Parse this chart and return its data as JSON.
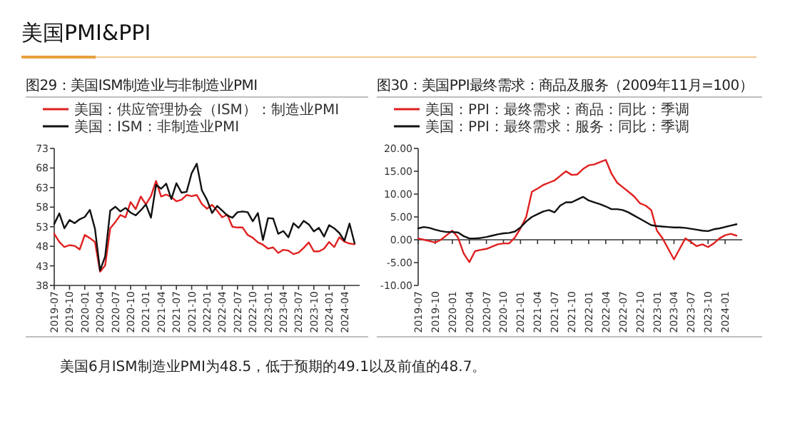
{
  "chart_data": [
    {
      "type": "line",
      "title": "图29：美国ISM制造业与非制造业PMI",
      "legend": "top",
      "annotations": [
        "美国PMI&PPI",
        "美国6月ISM制造业PMI为48.5，低于预期的49.1以及前值的48.7。"
      ],
      "x": [
        "2019-07",
        "2019-08",
        "2019-09",
        "2019-10",
        "2019-11",
        "2019-12",
        "2020-01",
        "2020-02",
        "2020-03",
        "2020-04",
        "2020-05",
        "2020-06",
        "2020-07",
        "2020-08",
        "2020-09",
        "2020-10",
        "2020-11",
        "2020-12",
        "2021-01",
        "2021-02",
        "2021-03",
        "2021-04",
        "2021-05",
        "2021-06",
        "2021-07",
        "2021-08",
        "2021-09",
        "2021-10",
        "2021-11",
        "2021-12",
        "2022-01",
        "2022-02",
        "2022-03",
        "2022-04",
        "2022-05",
        "2022-06",
        "2022-07",
        "2022-08",
        "2022-09",
        "2022-10",
        "2022-11",
        "2022-12",
        "2023-01",
        "2023-02",
        "2023-03",
        "2023-04",
        "2023-05",
        "2023-06",
        "2023-07",
        "2023-08",
        "2023-09",
        "2023-10",
        "2023-11",
        "2023-12",
        "2024-01",
        "2024-02",
        "2024-03",
        "2024-04",
        "2024-05",
        "2024-06"
      ],
      "series": [
        {
          "name": "美国：供应管理协会（ISM）：制造业PMI",
          "color": "#e02020",
          "values": [
            51.2,
            49.1,
            47.8,
            48.3,
            48.1,
            47.2,
            50.9,
            50.1,
            49.1,
            41.5,
            43.1,
            52.6,
            54.2,
            56.0,
            55.4,
            59.3,
            57.5,
            60.7,
            58.7,
            60.8,
            64.7,
            60.7,
            61.2,
            60.6,
            59.5,
            59.9,
            61.1,
            60.8,
            61.1,
            58.8,
            57.6,
            58.6,
            57.1,
            55.4,
            56.1,
            53.0,
            52.8,
            52.8,
            50.9,
            50.2,
            49.0,
            48.4,
            47.4,
            47.7,
            46.3,
            47.1,
            46.9,
            46.0,
            46.4,
            47.6,
            49.0,
            46.7,
            46.7,
            47.4,
            49.1,
            47.8,
            50.3,
            49.2,
            48.7,
            48.5
          ]
        },
        {
          "name": "美国：ISM：非制造业PMI",
          "color": "#111111",
          "values": [
            53.7,
            56.4,
            52.6,
            54.7,
            53.9,
            54.9,
            55.5,
            57.3,
            52.5,
            41.8,
            45.4,
            57.1,
            58.1,
            56.9,
            57.8,
            56.6,
            55.9,
            57.2,
            58.7,
            55.3,
            63.7,
            62.7,
            64.0,
            60.1,
            64.1,
            61.7,
            61.9,
            66.7,
            69.1,
            62.3,
            59.9,
            56.5,
            58.3,
            57.1,
            55.9,
            55.3,
            56.7,
            56.9,
            56.7,
            54.4,
            56.5,
            49.6,
            55.2,
            55.1,
            51.2,
            51.9,
            50.3,
            53.9,
            52.7,
            54.5,
            53.6,
            51.8,
            52.7,
            50.5,
            53.4,
            52.6,
            51.4,
            49.4,
            53.8,
            48.8
          ]
        }
      ],
      "xlim": [
        "2019-07",
        "2024-07"
      ],
      "xticks": [
        "2019-07",
        "2019-10",
        "2020-01",
        "2020-04",
        "2020-07",
        "2020-10",
        "2021-01",
        "2021-04",
        "2021-07",
        "2021-10",
        "2022-01",
        "2022-04",
        "2022-07",
        "2022-10",
        "2023-01",
        "2023-04",
        "2023-07",
        "2023-10",
        "2024-01",
        "2024-04"
      ],
      "ylim": [
        38,
        73
      ],
      "yticks": [
        38,
        43,
        48,
        53,
        58,
        63,
        68,
        73
      ]
    },
    {
      "type": "line",
      "title": "图30：美国PPI最终需求：商品及服务（2009年11月=100）",
      "legend": "top",
      "x": [
        "2019-07",
        "2019-08",
        "2019-09",
        "2019-10",
        "2019-11",
        "2019-12",
        "2020-01",
        "2020-02",
        "2020-03",
        "2020-04",
        "2020-05",
        "2020-06",
        "2020-07",
        "2020-08",
        "2020-09",
        "2020-10",
        "2020-11",
        "2020-12",
        "2021-01",
        "2021-02",
        "2021-03",
        "2021-04",
        "2021-05",
        "2021-06",
        "2021-07",
        "2021-08",
        "2021-09",
        "2021-10",
        "2021-11",
        "2021-12",
        "2022-01",
        "2022-02",
        "2022-03",
        "2022-04",
        "2022-05",
        "2022-06",
        "2022-07",
        "2022-08",
        "2022-09",
        "2022-10",
        "2022-11",
        "2022-12",
        "2023-01",
        "2023-02",
        "2023-03",
        "2023-04",
        "2023-05",
        "2023-06",
        "2023-07",
        "2023-08",
        "2023-09",
        "2023-10",
        "2023-11",
        "2023-12",
        "2024-01",
        "2024-02",
        "2024-03"
      ],
      "series": [
        {
          "name": "美国：PPI：最终需求：商品：同比：季调",
          "color": "#e02020",
          "values": [
            0.3,
            0.0,
            -0.3,
            -0.6,
            0.0,
            1.0,
            2.0,
            0.5,
            -3.0,
            -4.9,
            -2.5,
            -2.2,
            -2.0,
            -1.5,
            -1.0,
            -0.8,
            -0.8,
            0.5,
            2.5,
            5.0,
            10.5,
            11.2,
            12.0,
            12.5,
            13.0,
            14.0,
            15.0,
            14.2,
            14.3,
            15.5,
            16.3,
            16.5,
            17.0,
            17.5,
            14.5,
            12.5,
            11.5,
            10.5,
            9.5,
            8.0,
            7.5,
            6.5,
            2.0,
            0.3,
            -2.0,
            -4.3,
            -2.0,
            0.3,
            -0.5,
            -1.4,
            -1.0,
            -1.6,
            -0.8,
            0.3,
            1.0,
            1.3,
            0.9
          ]
        },
        {
          "name": "美国：PPI：最终需求：服务：同比：季调",
          "color": "#111111",
          "values": [
            2.5,
            2.8,
            2.6,
            2.2,
            1.9,
            1.7,
            1.7,
            1.6,
            0.8,
            0.3,
            0.3,
            0.4,
            0.6,
            0.9,
            1.2,
            1.4,
            1.5,
            1.8,
            2.7,
            4.0,
            5.0,
            5.6,
            6.2,
            6.5,
            6.0,
            7.5,
            8.2,
            8.2,
            8.8,
            9.4,
            8.6,
            8.2,
            7.8,
            7.3,
            6.7,
            6.7,
            6.5,
            6.0,
            5.3,
            4.6,
            3.9,
            3.2,
            3.0,
            2.9,
            2.8,
            2.7,
            2.7,
            2.6,
            2.4,
            2.2,
            2.0,
            1.9,
            2.3,
            2.5,
            2.8,
            3.1,
            3.4
          ]
        }
      ],
      "xlim": [
        "2019-07",
        "2024-04"
      ],
      "xticks": [
        "2019-07",
        "2019-10",
        "2020-01",
        "2020-04",
        "2020-07",
        "2020-10",
        "2021-01",
        "2021-04",
        "2021-07",
        "2021-10",
        "2022-01",
        "2022-04",
        "2022-07",
        "2022-10",
        "2023-01",
        "2023-04",
        "2023-07",
        "2023-10",
        "2024-01"
      ],
      "ylim": [
        -10,
        20
      ],
      "yticks": [
        {
          "value": -10,
          "label": "-10.00"
        },
        {
          "value": -5,
          "label": "-5.00"
        },
        {
          "value": 0,
          "label": "0.00"
        },
        {
          "value": 5,
          "label": "5.00"
        },
        {
          "value": 10,
          "label": "10.00"
        },
        {
          "value": 15,
          "label": "15.00"
        },
        {
          "value": 20,
          "label": "20.00"
        }
      ]
    }
  ]
}
